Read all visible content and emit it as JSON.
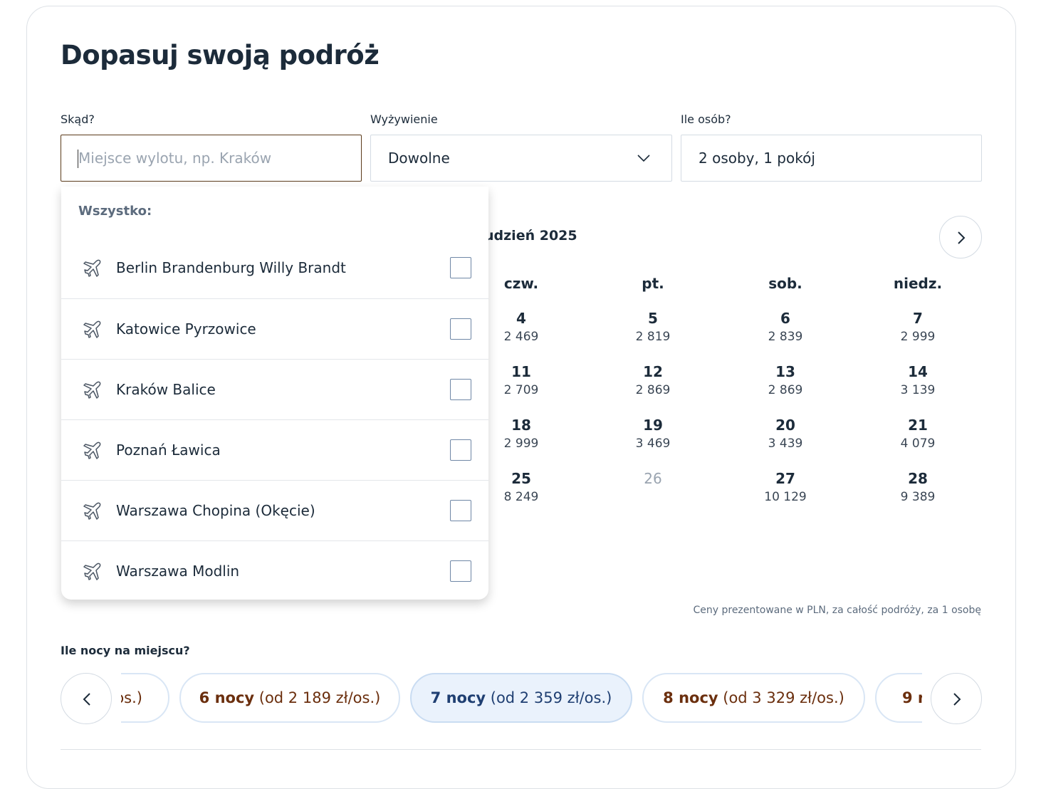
{
  "title": "Dopasuj swoją podróż",
  "fields": [
    {
      "label": "Skąd?",
      "placeholder": "Miejsce wylotu, np. Kraków"
    },
    {
      "label": "Wyżywienie",
      "value": "Dowolne"
    },
    {
      "label": "Ile osób?",
      "value": "2 osoby, 1 pokój"
    }
  ],
  "dropdown": {
    "heading": "Wszystko:",
    "options": [
      "Berlin Brandenburg Willy Brandt",
      "Katowice Pyrzowice",
      "Kraków Balice",
      "Poznań Ławica",
      "Warszawa Chopina (Okęcie)",
      "Warszawa Modlin"
    ]
  },
  "calendar": {
    "month": "udzień 2025",
    "weekdays": [
      "czw.",
      "pt.",
      "sob.",
      "niedz."
    ],
    "weeks": [
      [
        {
          "day": "4",
          "price": "2 469"
        },
        {
          "day": "5",
          "price": "2 819"
        },
        {
          "day": "6",
          "price": "2 839"
        },
        {
          "day": "7",
          "price": "2 999"
        }
      ],
      [
        {
          "day": "11",
          "price": "2 709"
        },
        {
          "day": "12",
          "price": "2 869"
        },
        {
          "day": "13",
          "price": "2 869"
        },
        {
          "day": "14",
          "price": "3 139"
        }
      ],
      [
        {
          "day": "18",
          "price": "2 999"
        },
        {
          "day": "19",
          "price": "3 469"
        },
        {
          "day": "20",
          "price": "3 439"
        },
        {
          "day": "21",
          "price": "4 079"
        }
      ],
      [
        {
          "day": "25",
          "price": "8 249"
        },
        {
          "day": "26"
        },
        {
          "day": "27",
          "price": "10 129"
        },
        {
          "day": "28",
          "price": "9 389"
        }
      ]
    ],
    "note": "Ceny prezentowane w PLN, za całość podróży, za 1 osobę"
  },
  "nights": {
    "label": "Ile nocy na miejscu?",
    "chips": [
      {
        "price": "os.)"
      },
      {
        "nights": "6 nocy",
        "price": "(od 2 189 zł/os.)"
      },
      {
        "nights": "7 nocy",
        "price": "(od 2 359 zł/os.)",
        "selected": true
      },
      {
        "nights": "8 nocy",
        "price": "(od 3 329 zł/os.)"
      },
      {
        "nights": "9 n"
      }
    ]
  }
}
